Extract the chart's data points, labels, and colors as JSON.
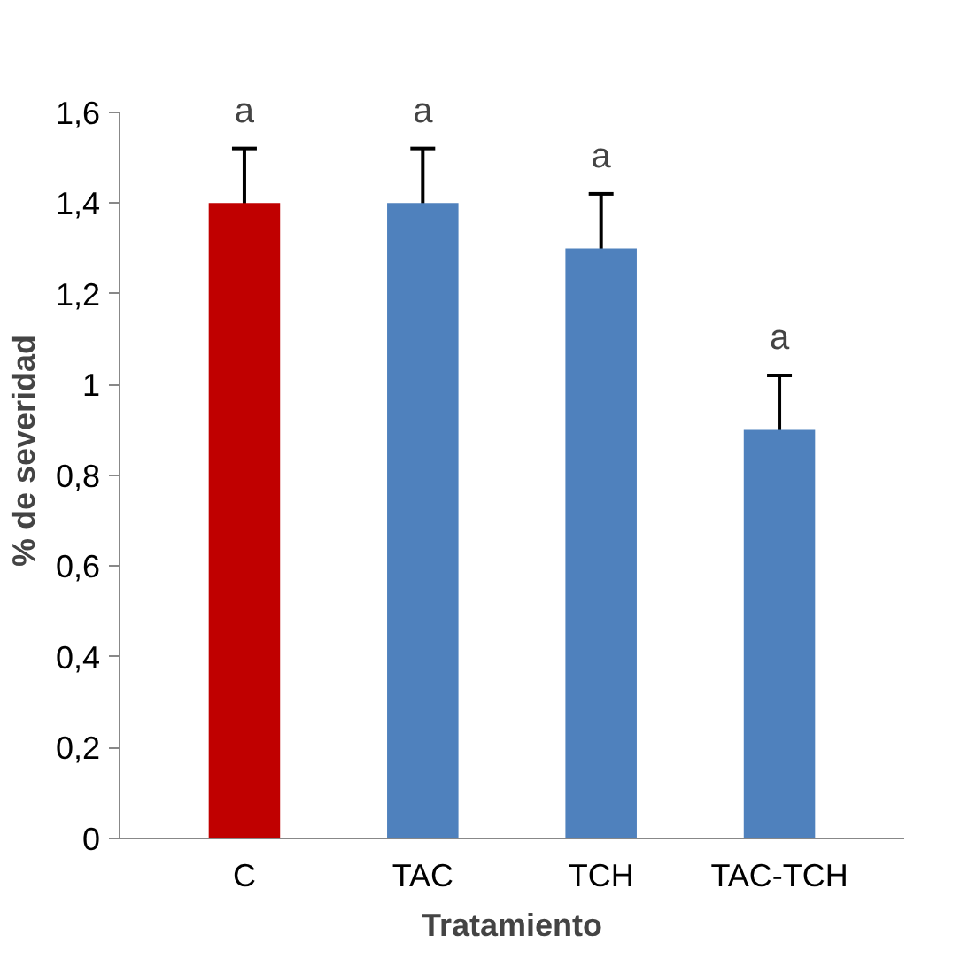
{
  "chart_data": {
    "type": "bar",
    "xlabel": "Tratamiento",
    "ylabel": "% de  severidad",
    "categories": [
      "C",
      "TAC",
      "TCH",
      "TAC-TCH"
    ],
    "values": [
      1.4,
      1.4,
      1.3,
      0.9
    ],
    "colors": [
      "#c00000",
      "#4f81bd",
      "#4f81bd",
      "#4f81bd"
    ],
    "errors": [
      0.12,
      0.12,
      0.12,
      0.12
    ],
    "ylim": [
      0,
      1.6
    ],
    "yticks": [
      0,
      {
        "value": 0.2,
        "label": "0,2"
      },
      {
        "value": 0.4,
        "label": "0,4"
      },
      {
        "value": 0.6,
        "label": "0,6"
      },
      {
        "value": 0.8,
        "label": "0,8"
      },
      1,
      {
        "value": 1.2,
        "label": "1,2"
      },
      {
        "value": 1.4,
        "label": "1,4"
      },
      {
        "value": 1.6,
        "label": "1,6"
      }
    ],
    "annotations": [
      "a",
      "a",
      "a",
      "a"
    ],
    "grid": false
  }
}
